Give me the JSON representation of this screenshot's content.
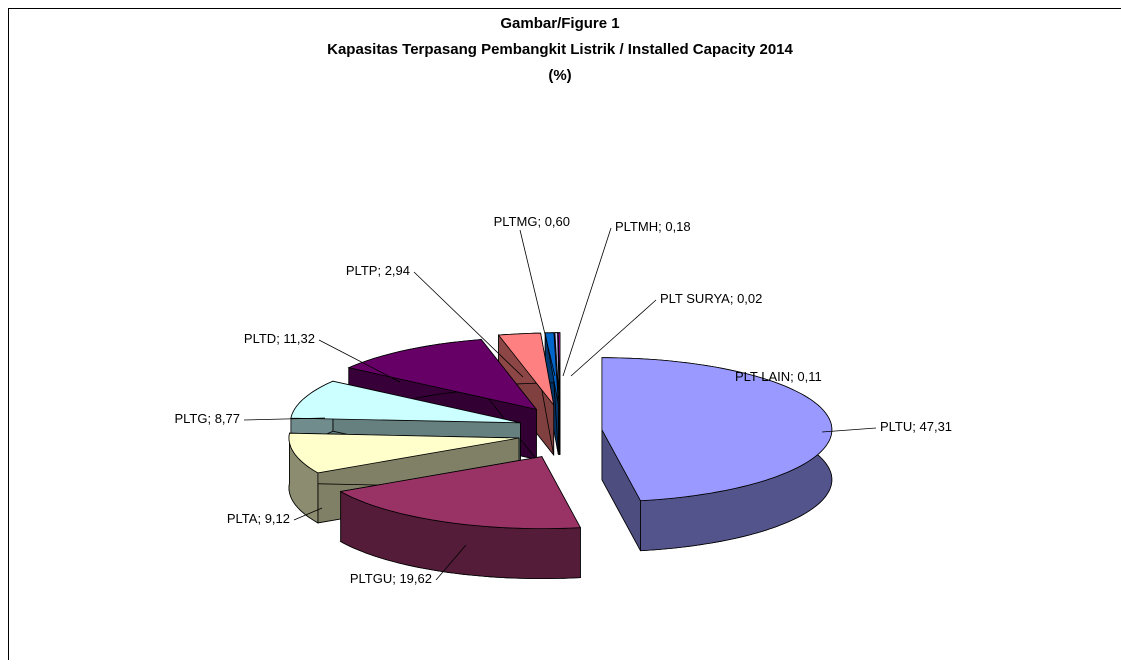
{
  "chart_data": {
    "type": "pie3d",
    "title": "Gambar/Figure  1",
    "subtitle": "Kapasitas Terpasang Pembangkit Listrik / Installed Capacity 2014",
    "unit_label": "(%)",
    "categories": [
      "PLTU",
      "PLTGU",
      "PLTA",
      "PLTG",
      "PLTD",
      "PLTP",
      "PLTMG",
      "PLTMH",
      "PLT SURYA",
      "PLT LAIN"
    ],
    "values": [
      47.31,
      19.62,
      9.12,
      8.77,
      11.32,
      2.94,
      0.6,
      0.18,
      0.02,
      0.11
    ],
    "value_labels": [
      "47,31",
      "19,62",
      "9,12",
      "8,77",
      "11,32",
      "2,94",
      "0,60",
      "0,18",
      "0,02",
      "0,11"
    ],
    "label_separator": "; ",
    "colors": [
      "#9999ff",
      "#993366",
      "#ffffcc",
      "#ccffff",
      "#660066",
      "#ff8080",
      "#0066cc",
      "#ccccff",
      "#000080",
      "#ff00ff"
    ]
  }
}
